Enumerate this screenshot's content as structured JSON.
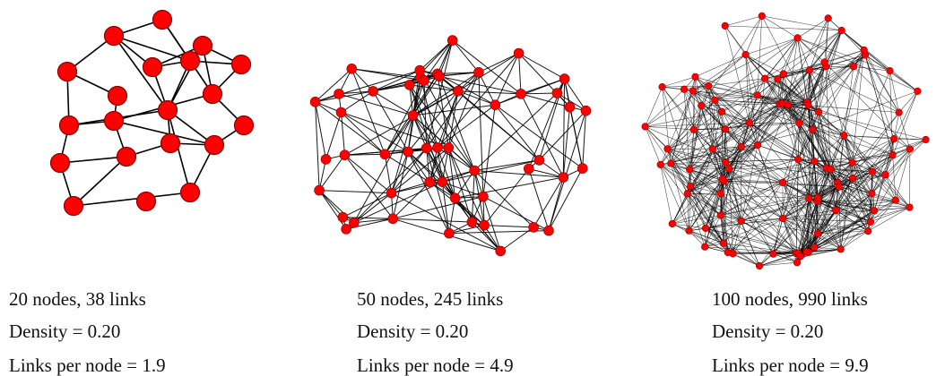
{
  "node_color": "#ff0000",
  "node_stroke": "#8b0000",
  "edge_color": "#000000",
  "networks": [
    {
      "nodes": 20,
      "links": 38,
      "caption_nodes_links": "20 nodes, 38 links",
      "caption_density": "Density = 0.20",
      "caption_links_per_node": "Links per node = 1.9"
    },
    {
      "nodes": 50,
      "links": 245,
      "caption_nodes_links": "50 nodes, 245 links",
      "caption_density": "Density = 0.20",
      "caption_links_per_node": "Links per node = 4.9"
    },
    {
      "nodes": 100,
      "links": 990,
      "caption_nodes_links": "100 nodes, 990 links",
      "caption_density": "Density = 0.20",
      "caption_links_per_node": "Links per node = 9.9"
    }
  ]
}
